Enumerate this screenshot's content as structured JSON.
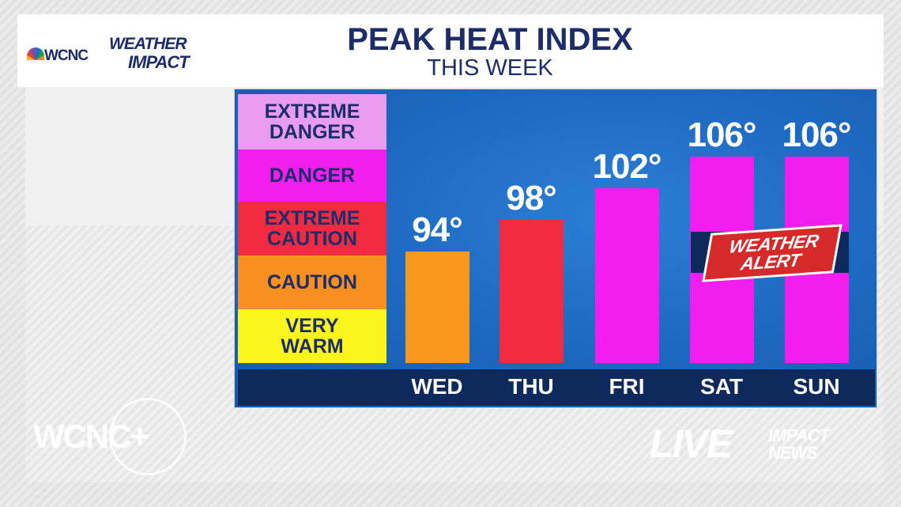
{
  "header": {
    "logo_call": "WCNC",
    "logo_line1": "WEATHER",
    "logo_line2": "IMPACT",
    "title": "PEAK HEAT INDEX",
    "subtitle": "THIS WEEK"
  },
  "legend": [
    {
      "label_lines": [
        "EXTREME",
        "DANGER"
      ],
      "color": "#e79cf0"
    },
    {
      "label_lines": [
        "DANGER"
      ],
      "color": "#f21ef0"
    },
    {
      "label_lines": [
        "EXTREME",
        "CAUTION"
      ],
      "color": "#f02a41"
    },
    {
      "label_lines": [
        "CAUTION"
      ],
      "color": "#f7901e"
    },
    {
      "label_lines": [
        "VERY",
        "WARM"
      ],
      "color": "#faf51a"
    }
  ],
  "chart_data": {
    "type": "bar",
    "title": "PEAK HEAT INDEX",
    "subtitle": "THIS WEEK",
    "categories": [
      "WED",
      "THU",
      "FRI",
      "SAT",
      "SUN"
    ],
    "values": [
      94,
      98,
      102,
      106,
      106
    ],
    "value_labels": [
      "94°",
      "98°",
      "102°",
      "106°",
      "106°"
    ],
    "bar_colors": [
      "#f7981d",
      "#f02a41",
      "#f21ef0",
      "#f21ef0",
      "#f21ef0"
    ],
    "ylim": [
      80,
      111
    ],
    "grid": false
  },
  "alert": {
    "line1": "WEATHER",
    "line2": "ALERT",
    "color": "#d62a2a"
  },
  "footer": {
    "left_logo": "WCNC+",
    "right_live": "LIVE",
    "right_line1": "IMPACT",
    "right_line2": "NEWS"
  }
}
